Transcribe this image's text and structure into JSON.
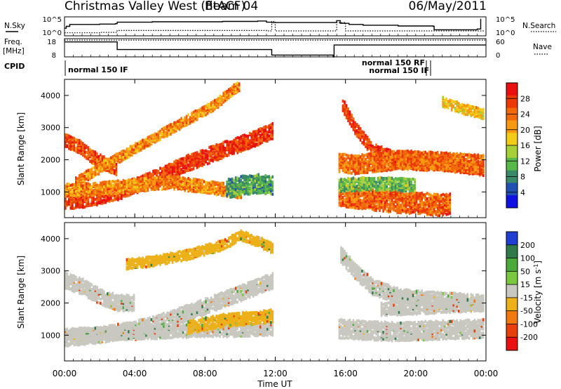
{
  "header": {
    "title": "Christmas Valley West (fitACF)",
    "beam": "Beam 04",
    "date": "06/May/2011"
  },
  "chart_data": [
    {
      "type": "line",
      "panel": "noise",
      "ylabel_left": "N.Sky",
      "ylabel_right": "N.Search",
      "yticks_left": [
        "10^5",
        "10^0"
      ],
      "yticks_right": [
        "10^5",
        "10^0"
      ],
      "log_scale": true,
      "ylim": [
        0,
        5
      ],
      "x_unit": "hours_ut",
      "gap": [
        12.0,
        15.4
      ],
      "series": [
        {
          "style": "solid",
          "x": [
            0,
            0.1,
            0.3,
            1,
            2,
            2.9,
            3,
            5,
            7,
            9,
            10,
            11,
            11.5,
            11.8,
            15.5,
            15.7,
            16.2,
            17,
            19,
            21,
            21.05,
            23.5,
            23.7
          ],
          "y": [
            2,
            2.5,
            3,
            3,
            3.1,
            3.2,
            3.6,
            3.7,
            3.7,
            3.8,
            3.8,
            3.9,
            3.6,
            3.5,
            4.0,
            3.3,
            3.0,
            2.8,
            2.6,
            2.5,
            1.6,
            1.8,
            4.5
          ]
        },
        {
          "style": "dotted",
          "x": [
            0,
            2,
            3,
            6,
            9,
            11.5,
            11.8,
            12.0,
            15.5,
            16,
            20,
            23.9
          ],
          "y": [
            0.8,
            0.9,
            1.4,
            1.4,
            1.4,
            1.3,
            3.8,
            1.3,
            3.5,
            1.3,
            1.3,
            1.3
          ]
        }
      ]
    },
    {
      "type": "line",
      "panel": "frequency",
      "ylabel_left": "Freq. [MHz]",
      "ylabel_right": "Nave",
      "yticks_left": [
        "18",
        "8"
      ],
      "yticks_right": [
        "60",
        "0"
      ],
      "ylim": [
        8,
        18
      ],
      "x_unit": "hours_ut",
      "series": [
        {
          "style": "solid",
          "x": [
            0,
            2.95,
            3.0,
            11.75,
            11.8,
            12.0,
            15.3,
            15.35,
            23.99
          ],
          "y": [
            16.2,
            16.2,
            12.0,
            12.0,
            9.0,
            9.0,
            8.0,
            14.5,
            14.5
          ]
        },
        {
          "style": "dotted",
          "x": [
            0,
            11.8,
            15.5,
            23.99
          ],
          "y": [
            17.2,
            17.2,
            17.2,
            17.2
          ]
        }
      ]
    },
    {
      "type": "table",
      "panel": "cpid",
      "label": "CPID",
      "annotations": [
        "normal 150 IF",
        "normal 150 RF",
        "normal 150 IF"
      ]
    },
    {
      "type": "heatmap",
      "panel": "power",
      "ylabel": "Slant Range [km]",
      "yticks": [
        1000,
        2000,
        3000,
        4000
      ],
      "ylim": [
        200,
        4500
      ],
      "colorbar_label": "Power [dB]",
      "colorbar_ticks": [
        4,
        8,
        12,
        16,
        20,
        24,
        28
      ],
      "colorbar_colors": [
        "#1010e0",
        "#2050b0",
        "#3a8a6a",
        "#58b84a",
        "#a6cf3a",
        "#f2cc18",
        "#f79a12",
        "#f06a0c",
        "#ea3806",
        "#e81010"
      ],
      "bands": [
        {
          "x": [
            0,
            0.8,
            1.5,
            2.5,
            3.0
          ],
          "y": [
            2600,
            2400,
            2100,
            1800,
            1700
          ],
          "width": 160,
          "value": 26
        },
        {
          "x": [
            0,
            1.5,
            3,
            5,
            7,
            9,
            11,
            11.8
          ],
          "y": [
            700,
            800,
            1000,
            1400,
            1900,
            2300,
            2700,
            2900
          ],
          "width": 220,
          "value": 27
        },
        {
          "x": [
            0.6,
            2.5,
            4.5,
            6.5,
            8.5,
            9.9
          ],
          "y": [
            1300,
            1900,
            2500,
            3100,
            3700,
            4300
          ],
          "width": 130,
          "value": 22
        },
        {
          "x": [
            0,
            2,
            4,
            6,
            8,
            10
          ],
          "y": [
            1050,
            1100,
            1200,
            1300,
            1150,
            1000
          ],
          "width": 180,
          "value": 22
        },
        {
          "x": [
            9.2,
            10,
            11,
            11.8
          ],
          "y": [
            1100,
            1200,
            1250,
            1200
          ],
          "width": 260,
          "value": 10
        },
        {
          "x": [
            15.8,
            16.5,
            17.5,
            19,
            21,
            23.9
          ],
          "y": [
            3700,
            3000,
            2300,
            2000,
            1900,
            1700
          ],
          "width": 170,
          "value": 27
        },
        {
          "x": [
            15.6,
            16.5,
            17.5,
            19,
            21,
            23.9
          ],
          "y": [
            1900,
            1850,
            1900,
            2000,
            1950,
            1850
          ],
          "width": 250,
          "value": 24
        },
        {
          "x": [
            15.6,
            17,
            18.5,
            20,
            21,
            22
          ],
          "y": [
            900,
            800,
            700,
            650,
            600,
            600
          ],
          "width": 300,
          "value": 25
        },
        {
          "x": [
            15.6,
            17,
            18.5,
            20
          ],
          "y": [
            1200,
            1250,
            1250,
            1200
          ],
          "width": 200,
          "value": 12
        },
        {
          "x": [
            21.5,
            22.5,
            23.9
          ],
          "y": [
            3800,
            3600,
            3400
          ],
          "width": 140,
          "value": 18
        }
      ]
    },
    {
      "type": "heatmap",
      "panel": "velocity",
      "ylabel": "Slant Range [km]",
      "yticks": [
        1000,
        2000,
        3000,
        4000
      ],
      "ylim": [
        200,
        4500
      ],
      "colorbar_label": "Velocity [m s^-1]",
      "colorbar_ticks": [
        200,
        100,
        50,
        15,
        -15,
        -50,
        -100,
        -200
      ],
      "colorbar_colors": [
        "#1e3fd2",
        "#2f7a48",
        "#4caa3c",
        "#7ac840",
        "#c8c8c0",
        "#ecb018",
        "#f07a10",
        "#e8400c",
        "#e81010"
      ],
      "xlabel": "Time UT",
      "xticks": [
        "00:00",
        "04:00",
        "08:00",
        "12:00",
        "16:00",
        "20:00",
        "00:00"
      ],
      "xlim": [
        0,
        24
      ],
      "bands": [
        {
          "x": [
            0,
            1,
            2,
            3,
            4
          ],
          "y": [
            2700,
            2500,
            2200,
            2000,
            2000
          ],
          "width": 220,
          "value": -5
        },
        {
          "x": [
            0,
            2,
            4,
            6,
            8,
            10,
            11.8
          ],
          "y": [
            900,
            1000,
            1200,
            1500,
            1900,
            2300,
            2700
          ],
          "width": 240,
          "value": -5
        },
        {
          "x": [
            0,
            2,
            4,
            6,
            8,
            10,
            11.8
          ],
          "y": [
            1000,
            1050,
            1050,
            1100,
            1150,
            1150,
            1200
          ],
          "width": 200,
          "value": -5
        },
        {
          "x": [
            3.5,
            5,
            7,
            9,
            10,
            11,
            11.8
          ],
          "y": [
            3200,
            3300,
            3500,
            3800,
            4100,
            3900,
            3700
          ],
          "width": 140,
          "value": -40
        },
        {
          "x": [
            7,
            8,
            9,
            10,
            11,
            11.8
          ],
          "y": [
            1250,
            1350,
            1450,
            1500,
            1550,
            1600
          ],
          "width": 160,
          "value": -40
        },
        {
          "x": [
            15.7,
            16.5,
            17.5,
            19,
            21,
            23.9
          ],
          "y": [
            3500,
            3000,
            2500,
            2200,
            2100,
            2000
          ],
          "width": 220,
          "value": -5
        },
        {
          "x": [
            15.6,
            17,
            19,
            21,
            23.9
          ],
          "y": [
            1200,
            1150,
            1100,
            1150,
            1200
          ],
          "width": 260,
          "value": -5
        },
        {
          "x": [
            18,
            20,
            22,
            23.9
          ],
          "y": [
            1800,
            1850,
            1900,
            1950
          ],
          "width": 200,
          "value": -5
        }
      ]
    }
  ]
}
